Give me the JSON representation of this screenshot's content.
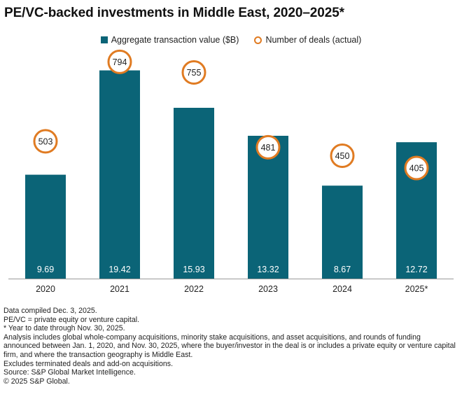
{
  "title": "PE/VC-backed investments in Middle East, 2020–2025*",
  "legend": {
    "bars_label": "Aggregate transaction value ($B)",
    "deals_label": "Number of deals (actual)"
  },
  "colors": {
    "bar": "#0b6477",
    "circle_border": "#e07b22",
    "axis": "#9a9a9a"
  },
  "chart_data": {
    "type": "bar",
    "title": "PE/VC-backed investments in Middle East, 2020–2025*",
    "categories": [
      "2020",
      "2021",
      "2022",
      "2023",
      "2024",
      "2025*"
    ],
    "series": [
      {
        "name": "Aggregate transaction value ($B)",
        "type": "bar",
        "values": [
          9.69,
          19.42,
          15.93,
          13.32,
          8.67,
          12.72
        ],
        "labels": [
          "9.69",
          "19.42",
          "15.93",
          "13.32",
          "8.67",
          "12.72"
        ]
      },
      {
        "name": "Number of deals (actual)",
        "type": "circle-marker",
        "values": [
          503,
          794,
          755,
          481,
          450,
          405
        ],
        "labels": [
          "503",
          "794",
          "755",
          "481",
          "450",
          "405"
        ]
      }
    ],
    "bar_axis_range": [
      0,
      20.5
    ],
    "deals_axis_range": [
      0,
      900
    ],
    "legend_position": "top-center",
    "grid": false
  },
  "notes": [
    "Data compiled Dec. 3, 2025.",
    "PE/VC = private equity or venture capital.",
    "* Year to date through Nov. 30, 2025.",
    "Analysis includes global whole-company acquisitions, minority stake acquisitions, and asset acquisitions, and rounds of funding announced between Jan. 1, 2020, and Nov. 30, 2025, where the buyer/investor in the deal is or includes a private equity or venture capital firm, and where the transaction geography is Middle East.",
    "Excludes terminated deals and add-on acquisitions.",
    "Source: S&P Global Market Intelligence.",
    "© 2025 S&P Global."
  ]
}
